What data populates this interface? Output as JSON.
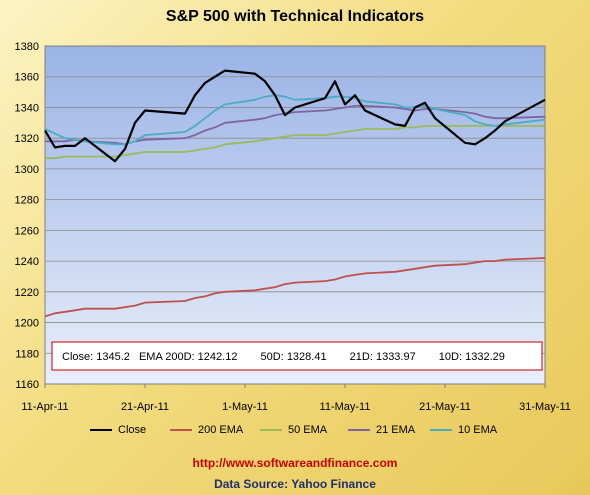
{
  "chart_data": {
    "type": "line",
    "title": "S&P 500 with Technical Indicators",
    "ylim": [
      1160,
      1380
    ],
    "y_ticks": [
      1160,
      1180,
      1200,
      1220,
      1240,
      1260,
      1280,
      1300,
      1320,
      1340,
      1360,
      1380
    ],
    "x_tick_labels": [
      "11-Apr-11",
      "21-Apr-11",
      "1-May-11",
      "11-May-11",
      "21-May-11",
      "31-May-11"
    ],
    "x_tick_dates": [
      "2011-04-11",
      "2011-04-21",
      "2011-05-01",
      "2011-05-11",
      "2011-05-21",
      "2011-05-31"
    ],
    "x_range": [
      "2011-04-11",
      "2011-05-31"
    ],
    "grid": true,
    "legend_position": "bottom",
    "x": [
      "2011-04-11",
      "2011-04-12",
      "2011-04-13",
      "2011-04-14",
      "2011-04-15",
      "2011-04-18",
      "2011-04-19",
      "2011-04-20",
      "2011-04-21",
      "2011-04-25",
      "2011-04-26",
      "2011-04-27",
      "2011-04-28",
      "2011-04-29",
      "2011-05-02",
      "2011-05-03",
      "2011-05-04",
      "2011-05-05",
      "2011-05-06",
      "2011-05-09",
      "2011-05-10",
      "2011-05-11",
      "2011-05-12",
      "2011-05-13",
      "2011-05-16",
      "2011-05-17",
      "2011-05-18",
      "2011-05-19",
      "2011-05-20",
      "2011-05-23",
      "2011-05-24",
      "2011-05-25",
      "2011-05-26",
      "2011-05-27",
      "2011-05-31"
    ],
    "series": [
      {
        "name": "Close",
        "color": "#000000",
        "values": [
          1325,
          1314,
          1315,
          1315,
          1320,
          1305,
          1313,
          1330,
          1338,
          1336,
          1348,
          1356,
          1360,
          1364,
          1362,
          1357,
          1348,
          1335,
          1340,
          1346,
          1357,
          1342,
          1348,
          1338,
          1329,
          1328,
          1340,
          1343,
          1333,
          1317,
          1316,
          1320,
          1325,
          1331,
          1345
        ]
      },
      {
        "name": "200 EMA",
        "color": "#c0504d",
        "values": [
          1204,
          1206,
          1207,
          1208,
          1209,
          1209,
          1210,
          1211,
          1213,
          1214,
          1216,
          1217,
          1219,
          1220,
          1221,
          1222,
          1223,
          1225,
          1226,
          1227,
          1228,
          1230,
          1231,
          1232,
          1233,
          1234,
          1235,
          1236,
          1237,
          1238,
          1239,
          1240,
          1240,
          1241,
          1242
        ]
      },
      {
        "name": "50 EMA",
        "color": "#9bbb59",
        "values": [
          1307,
          1307,
          1308,
          1308,
          1308,
          1308,
          1309,
          1310,
          1311,
          1311,
          1312,
          1313,
          1314,
          1316,
          1318,
          1319,
          1320,
          1321,
          1322,
          1322,
          1323,
          1324,
          1325,
          1326,
          1326,
          1327,
          1327,
          1328,
          1328,
          1328,
          1328,
          1328,
          1328,
          1328,
          1328
        ]
      },
      {
        "name": "21 EMA",
        "color": "#8064a2",
        "values": [
          1318,
          1318,
          1318,
          1319,
          1318,
          1317,
          1316,
          1318,
          1319,
          1320,
          1322,
          1325,
          1327,
          1330,
          1332,
          1333,
          1335,
          1336,
          1337,
          1338,
          1339,
          1340,
          1341,
          1341,
          1340,
          1339,
          1338,
          1339,
          1339,
          1337,
          1336,
          1334,
          1333,
          1333,
          1334
        ]
      },
      {
        "name": "10 EMA",
        "color": "#4bacc6",
        "values": [
          1326,
          1323,
          1320,
          1319,
          1318,
          1316,
          1316,
          1318,
          1322,
          1324,
          1328,
          1333,
          1338,
          1342,
          1345,
          1347,
          1348,
          1347,
          1345,
          1346,
          1347,
          1347,
          1346,
          1344,
          1342,
          1340,
          1340,
          1341,
          1339,
          1335,
          1331,
          1329,
          1328,
          1329,
          1332
        ]
      }
    ],
    "annotation": {
      "close_label": "Close:",
      "close_value": "1345.2",
      "ema200_label": "EMA 200D:",
      "ema200_value": "1242.12",
      "ema50_label": "50D:",
      "ema50_value": "1328.41",
      "ema21_label": "21D:",
      "ema21_value": "1333.97",
      "ema10_label": "10D:",
      "ema10_value": "1332.29"
    }
  },
  "footer": {
    "url": "http://www.softwareandfinance.com",
    "source": "Data Source: Yahoo Finance"
  }
}
